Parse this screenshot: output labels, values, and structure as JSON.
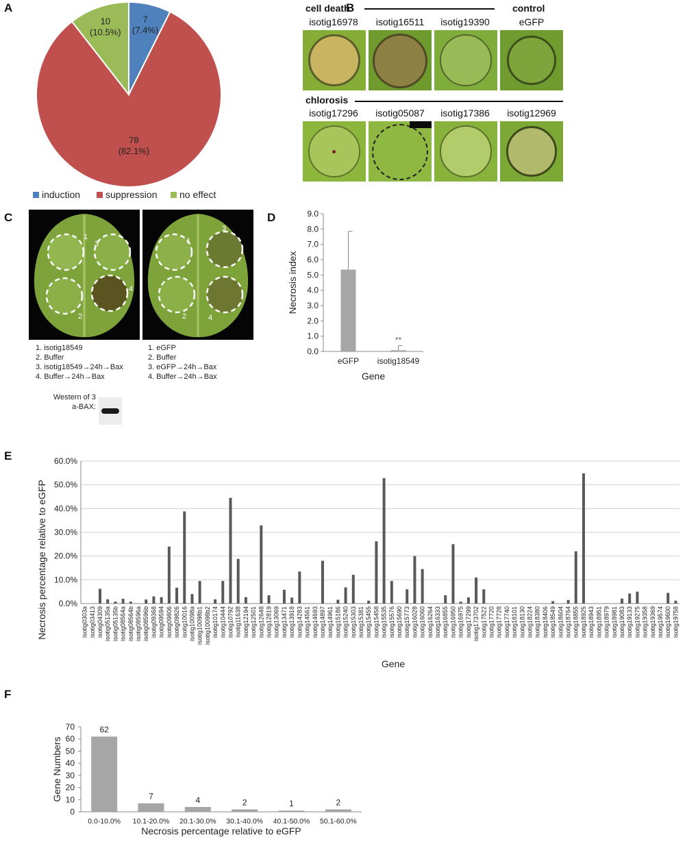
{
  "panels": {
    "A": "A",
    "B": "B",
    "C": "C",
    "D": "D",
    "E": "E",
    "F": "F"
  },
  "colors": {
    "induction": "#4f81bd",
    "suppression": "#c0504d",
    "no_effect": "#9bbb59",
    "bar": "#a6a6a6",
    "bar_dark": "#595959",
    "leaf_green": "#7fa93a"
  },
  "panel_b": {
    "cell_death_label": "cell death",
    "control_label": "control",
    "chlorosis_label": "chlorosis",
    "row1": [
      "isotig16978",
      "isotig16511",
      "isotig19390",
      "eGFP"
    ],
    "row2": [
      "isotig17296",
      "isotig05087",
      "isotig17386",
      "isotig12969"
    ]
  },
  "panel_c": {
    "left_caption": [
      "1. isotig18549",
      "2. Buffer",
      "3. isotig18549→24h→Bax",
      "4. Buffer→24h→Bax"
    ],
    "right_caption": [
      "1. eGFP",
      "2. Buffer",
      "3. eGFP→24h→Bax",
      "4. Buffer→24h→Bax"
    ],
    "western_label_1": "Western of 3",
    "western_label_2": "a-BAX:",
    "spot_numbers": [
      "1",
      "2",
      "3",
      "4"
    ]
  },
  "chart_data": [
    {
      "panel": "A",
      "type": "pie",
      "labels": [
        "induction",
        "suppression",
        "no effect"
      ],
      "values": [
        7,
        78,
        10
      ],
      "value_labels": [
        "7",
        "78",
        "10"
      ],
      "percent_labels": [
        "(7.4%)",
        "(82.1%)",
        "(10.5%)"
      ],
      "colors": [
        "#4f81bd",
        "#c0504d",
        "#9bbb59"
      ],
      "legend": "bottom"
    },
    {
      "panel": "D",
      "type": "bar",
      "categories": [
        "eGFP",
        "isotig18549"
      ],
      "values": [
        5.35,
        0.08
      ],
      "errors": [
        2.5,
        0.3
      ],
      "annotations": [
        "",
        "**"
      ],
      "xlabel": "Gene",
      "ylabel": "Necrosis index",
      "ylim": [
        0,
        9
      ],
      "yticks": [
        "0.0",
        "1.0",
        "2.0",
        "3.0",
        "4.0",
        "5.0",
        "6.0",
        "7.0",
        "8.0",
        "9.0"
      ]
    },
    {
      "panel": "E",
      "type": "bar",
      "xlabel": "Gene",
      "ylabel": "Necrosis percentage relative to eGFP",
      "ylim": [
        0,
        60
      ],
      "yticks": [
        "0.0%",
        "10.0%",
        "20.0%",
        "30.0%",
        "40.0%",
        "50.0%",
        "60.0%"
      ],
      "grid": true,
      "categories": [
        "isotig0303a",
        "isotig03413",
        "isotig04309",
        "isotig05135a",
        "isotig05135b",
        "isotig08564a",
        "isotig08564b",
        "isotig08596a",
        "isotig08596b",
        "isotig09368",
        "isotig09594",
        "isotig09806",
        "isotig09826",
        "isotig10016",
        "isotig10098a",
        "isotig10098b1",
        "isotig10098b2",
        "isotig10174",
        "isotig10444",
        "isotig10792",
        "isotig11638",
        "isotig12194",
        "isotig12501",
        "isotig12648",
        "isotig12819",
        "isotig13069",
        "isotig13471",
        "isotig13918",
        "isotig14283",
        "isotig14561",
        "isotig14693",
        "isotig14897",
        "isotig14961",
        "isotig15186",
        "isotig15240",
        "isotig15303",
        "isotig15381",
        "isotig15455",
        "isotig15458",
        "isotig15535",
        "isotig15576",
        "isotig15690",
        "isotig15773",
        "isotig16028",
        "isotig16060",
        "isotig16264",
        "isotig16333",
        "isotig16855",
        "isotig16950",
        "isotig16975",
        "isotig17299",
        "isotig173702",
        "isotig17522",
        "isotig17720",
        "isotig17728",
        "isotig17740",
        "isotig18101",
        "isotig18130",
        "isotig18224",
        "isotig18380",
        "isotig18406",
        "isotig18549",
        "isotig18604",
        "isotig18764",
        "isotig18855",
        "isotig18925",
        "isotig18943",
        "isotig18951",
        "isotig18979",
        "isotig18981",
        "isotig19083",
        "isotig19133",
        "isotig19275",
        "isotig19358",
        "isotig19369",
        "isotig19574",
        "isotig19600",
        "isotig19758"
      ],
      "values": [
        0,
        0,
        6.2,
        1.8,
        0.8,
        2.0,
        0.8,
        0,
        1.7,
        3.0,
        2.7,
        24.0,
        6.7,
        38.8,
        4.0,
        9.5,
        0,
        1.8,
        9.5,
        44.5,
        18.8,
        2.7,
        0,
        32.9,
        3.5,
        0,
        5.8,
        2.5,
        13.5,
        0,
        0,
        18.0,
        0,
        1.6,
        6.8,
        12.1,
        0,
        1.2,
        26.2,
        52.8,
        9.5,
        0,
        6.0,
        20.0,
        14.5,
        0,
        0,
        3.5,
        25.0,
        0.8,
        2.6,
        11.0,
        6.0,
        0,
        0,
        0,
        0,
        0,
        0,
        0,
        0,
        1.0,
        0,
        1.5,
        22.0,
        54.8,
        0,
        0,
        0,
        0,
        2.1,
        4.2,
        5.0,
        0,
        0,
        0,
        4.5,
        1.2
      ]
    },
    {
      "panel": "F",
      "type": "bar",
      "categories": [
        "0.0-10.0%",
        "10.1-20.0%",
        "20.1-30.0%",
        "30.1-40.0%",
        "40.1-50.0%",
        "50.1-60.0%"
      ],
      "values": [
        62,
        7,
        4,
        2,
        1,
        2
      ],
      "data_labels": [
        "62",
        "7",
        "4",
        "2",
        "1",
        "2"
      ],
      "xlabel": "Necrosis percentage relative to eGFP",
      "ylabel": "Gene Numbers",
      "ylim": [
        0,
        70
      ],
      "yticks": [
        "0",
        "10",
        "20",
        "30",
        "40",
        "50",
        "60",
        "70"
      ]
    }
  ]
}
